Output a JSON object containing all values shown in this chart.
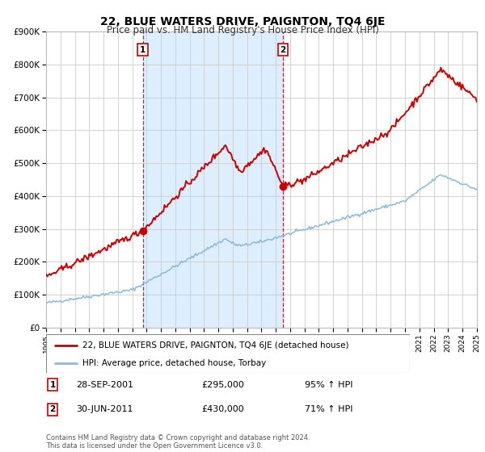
{
  "title": "22, BLUE WATERS DRIVE, PAIGNTON, TQ4 6JE",
  "subtitle": "Price paid vs. HM Land Registry's House Price Index (HPI)",
  "xlim": [
    1995,
    2025
  ],
  "ylim": [
    0,
    900000
  ],
  "yticks": [
    0,
    100000,
    200000,
    300000,
    400000,
    500000,
    600000,
    700000,
    800000,
    900000
  ],
  "ytick_labels": [
    "£0",
    "£100K",
    "£200K",
    "£300K",
    "£400K",
    "£500K",
    "£600K",
    "£700K",
    "£800K",
    "£900K"
  ],
  "sale1_x": 2001.74,
  "sale1_y": 295000,
  "sale1_label": "1",
  "sale1_date": "28-SEP-2001",
  "sale1_price": "£295,000",
  "sale1_hpi": "95% ↑ HPI",
  "sale2_x": 2011.5,
  "sale2_y": 430000,
  "sale2_label": "2",
  "sale2_date": "30-JUN-2011",
  "sale2_price": "£430,000",
  "sale2_hpi": "71% ↑ HPI",
  "hpi_line_color": "#88bbdd",
  "price_line_color": "#cc0000",
  "shade_color": "#ddeeff",
  "grid_color": "#cccccc",
  "legend_label_price": "22, BLUE WATERS DRIVE, PAIGNTON, TQ4 6JE (detached house)",
  "legend_label_hpi": "HPI: Average price, detached house, Torbay",
  "footer": "Contains HM Land Registry data © Crown copyright and database right 2024.\nThis data is licensed under the Open Government Licence v3.0."
}
